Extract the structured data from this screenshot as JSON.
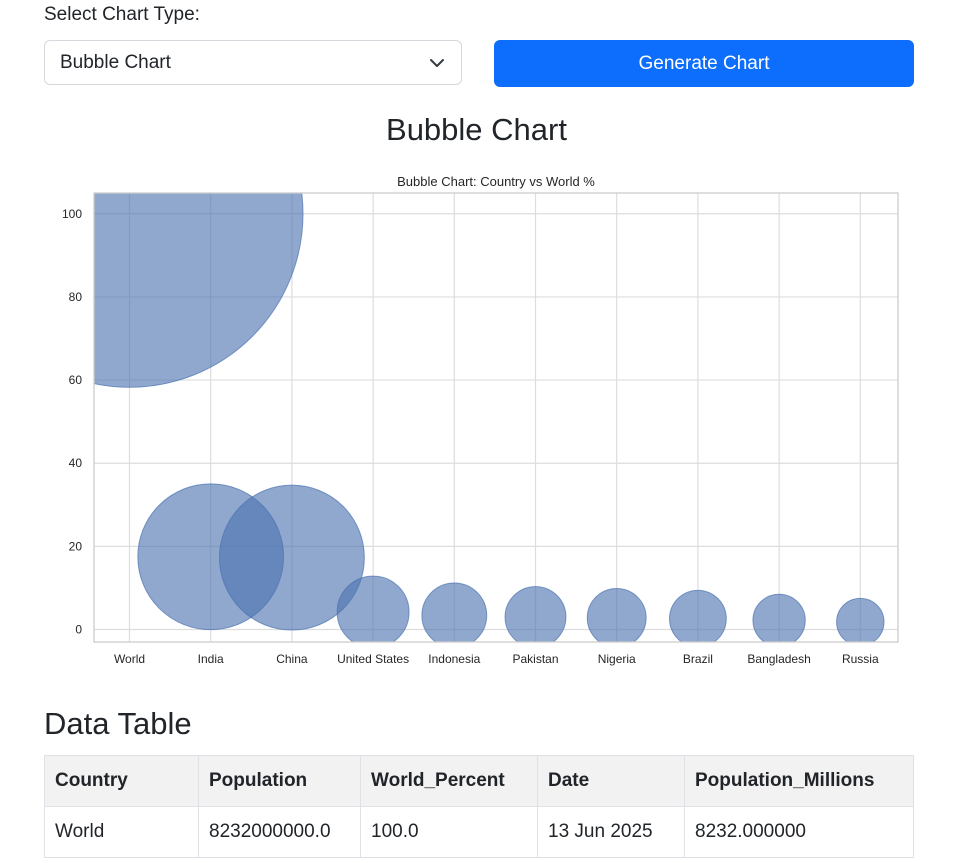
{
  "form": {
    "select_label": "Select Chart Type:",
    "selected_option": "Bubble Chart",
    "generate_button": "Generate Chart"
  },
  "chart_section": {
    "heading": "Bubble Chart"
  },
  "chart_data": {
    "type": "scatter",
    "title": "Bubble Chart: Country vs World %",
    "xlabel": "",
    "ylabel": "",
    "categories": [
      "World",
      "India",
      "China",
      "United States",
      "Indonesia",
      "Pakistan",
      "Nigeria",
      "Brazil",
      "Bangladesh",
      "Russia"
    ],
    "values": [
      100.0,
      17.5,
      17.3,
      4.2,
      3.4,
      3.0,
      2.8,
      2.6,
      2.2,
      1.8
    ],
    "yticks": [
      0,
      20,
      40,
      60,
      80,
      100
    ],
    "ylim": [
      -3,
      105
    ],
    "grid": true,
    "bubble_color": "#4c72b0"
  },
  "table": {
    "heading": "Data Table",
    "columns": [
      "Country",
      "Population",
      "World_Percent",
      "Date",
      "Population_Millions"
    ],
    "rows": [
      [
        "World",
        "8232000000.0",
        "100.0",
        "13 Jun 2025",
        "8232.000000"
      ]
    ]
  }
}
